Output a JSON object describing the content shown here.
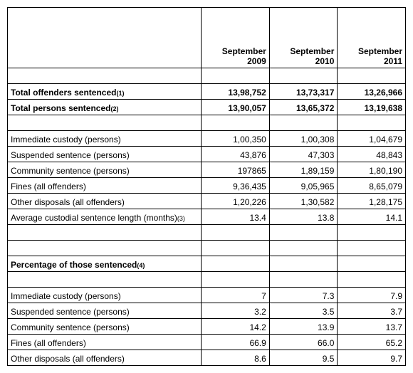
{
  "headers": {
    "col1": "September 2009",
    "col2": "September 2010",
    "col3": "September 2011"
  },
  "totals": {
    "offenders": {
      "label": "Total offenders sentenced",
      "sup": "(1)",
      "v1": "13,98,752",
      "v2": "13,73,317",
      "v3": "13,26,966"
    },
    "persons": {
      "label": "Total persons sentenced",
      "sup": "(2)",
      "v1": "13,90,057",
      "v2": "13,65,372",
      "v3": "13,19,638"
    }
  },
  "details": {
    "r1": {
      "label": "Immediate custody (persons)",
      "v1": "1,00,350",
      "v2": "1,00,308",
      "v3": "1,04,679"
    },
    "r2": {
      "label": "Suspended sentence (persons)",
      "v1": "43,876",
      "v2": "47,303",
      "v3": "48,843"
    },
    "r3": {
      "label": "Community sentence (persons)",
      "v1": "197865",
      "v2": "1,89,159",
      "v3": "1,80,190"
    },
    "r4": {
      "label": "Fines (all offenders)",
      "v1": "9,36,435",
      "v2": "9,05,965",
      "v3": "8,65,079"
    },
    "r5": {
      "label": "Other disposals (all offenders)",
      "v1": "1,20,226",
      "v2": "1,30,582",
      "v3": "1,28,175"
    },
    "r6": {
      "label": "Average custodial sentence length (months)",
      "sup": "(3)",
      "v1": "13.4",
      "v2": "13.8",
      "v3": "14.1"
    }
  },
  "pctHeader": {
    "label": "Percentage of those sentenced",
    "sup": "(4)"
  },
  "pct": {
    "r1": {
      "label": "Immediate custody (persons)",
      "v1": "7",
      "v2": "7.3",
      "v3": "7.9"
    },
    "r2": {
      "label": "Suspended sentence (persons)",
      "v1": "3.2",
      "v2": "3.5",
      "v3": "3.7"
    },
    "r3": {
      "label": "Community sentence (persons)",
      "v1": "14.2",
      "v2": "13.9",
      "v3": "13.7"
    },
    "r4": {
      "label": "Fines (all offenders)",
      "v1": "66.9",
      "v2": "66.0",
      "v3": "65.2"
    },
    "r5": {
      "label": "Other disposals (all offenders)",
      "v1": "8.6",
      "v2": "9.5",
      "v3": "9.7"
    }
  }
}
